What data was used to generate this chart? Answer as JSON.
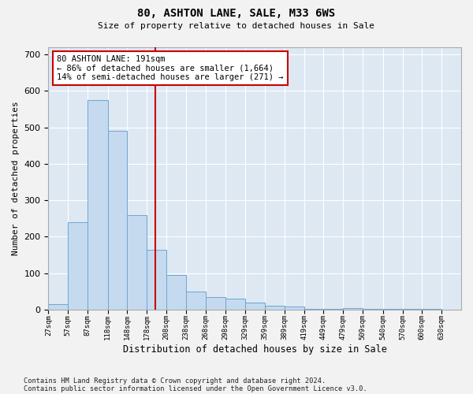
{
  "title1": "80, ASHTON LANE, SALE, M33 6WS",
  "title2": "Size of property relative to detached houses in Sale",
  "xlabel": "Distribution of detached houses by size in Sale",
  "ylabel": "Number of detached properties",
  "bar_left_edges": [
    27,
    57,
    87,
    118,
    148,
    178,
    208,
    238,
    268,
    298,
    329,
    359,
    389,
    419,
    449,
    479,
    509,
    540,
    570,
    600
  ],
  "bar_widths": [
    30,
    30,
    31,
    30,
    30,
    30,
    30,
    30,
    30,
    31,
    30,
    30,
    30,
    30,
    30,
    30,
    31,
    30,
    30,
    30
  ],
  "bar_heights": [
    15,
    240,
    575,
    490,
    260,
    165,
    95,
    50,
    35,
    30,
    20,
    10,
    8,
    2,
    2,
    5,
    2,
    2,
    2,
    2
  ],
  "bar_color": "#c5d9ef",
  "bar_edge_color": "#6ea6d0",
  "ylim": [
    0,
    720
  ],
  "yticks": [
    0,
    100,
    200,
    300,
    400,
    500,
    600,
    700
  ],
  "xtick_positions": [
    27,
    57,
    87,
    118,
    148,
    178,
    208,
    238,
    268,
    298,
    329,
    359,
    389,
    419,
    449,
    479,
    509,
    540,
    570,
    600,
    630
  ],
  "xtick_labels": [
    "27sqm",
    "57sqm",
    "87sqm",
    "118sqm",
    "148sqm",
    "178sqm",
    "208sqm",
    "238sqm",
    "268sqm",
    "298sqm",
    "329sqm",
    "359sqm",
    "389sqm",
    "419sqm",
    "449sqm",
    "479sqm",
    "509sqm",
    "540sqm",
    "570sqm",
    "600sqm",
    "630sqm"
  ],
  "xlim": [
    27,
    660
  ],
  "vline_x": 191,
  "vline_color": "#cc0000",
  "annotation_text": "80 ASHTON LANE: 191sqm\n← 86% of detached houses are smaller (1,664)\n14% of semi-detached houses are larger (271) →",
  "annotation_box_color": "#ffffff",
  "annotation_box_edge": "#cc0000",
  "footnote1": "Contains HM Land Registry data © Crown copyright and database right 2024.",
  "footnote2": "Contains public sector information licensed under the Open Government Licence v3.0.",
  "bg_color": "#dde8f3",
  "fig_bg_color": "#f2f2f2",
  "grid_color": "#ffffff"
}
